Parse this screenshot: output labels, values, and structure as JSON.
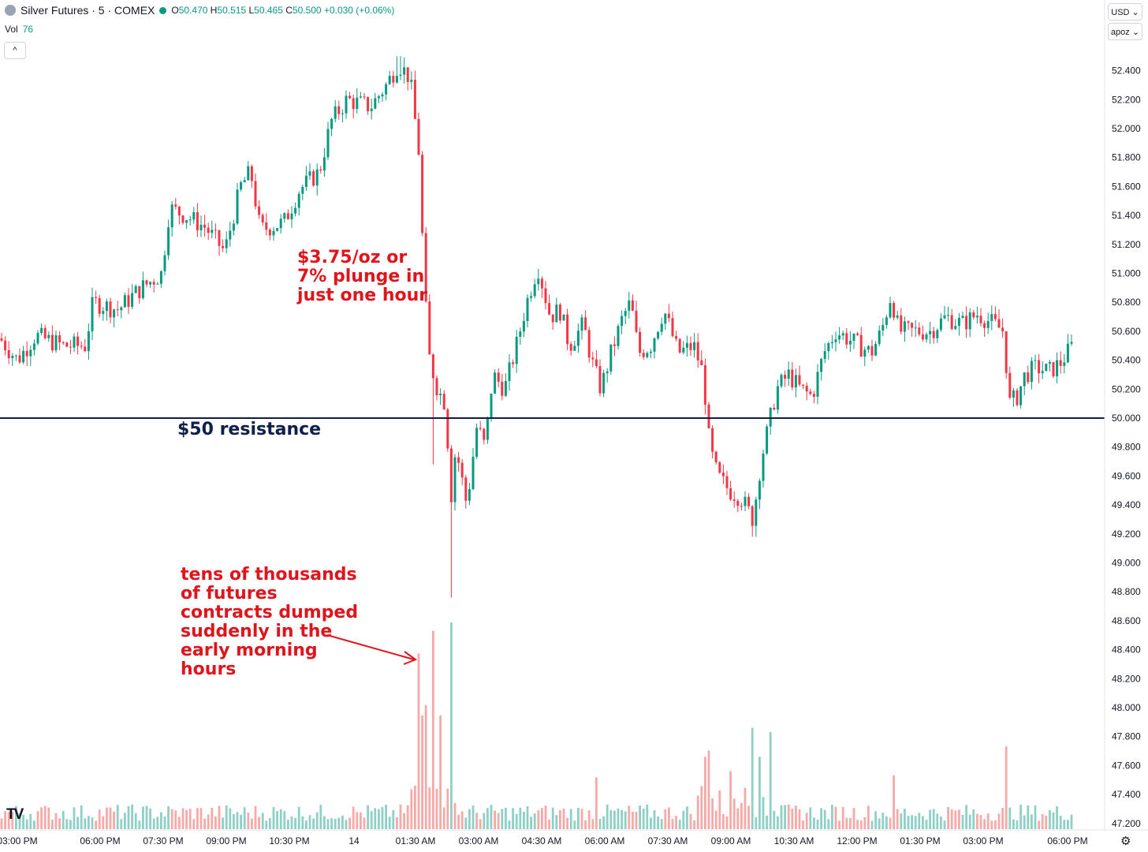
{
  "header": {
    "symbol": "Silver Futures · 5 · COMEX",
    "open_label": "O",
    "open": "50.470",
    "high_label": "H",
    "high": "50.515",
    "low_label": "L",
    "low": "50.465",
    "close_label": "C",
    "close": "50.500",
    "change": "+0.030 (+0.06%)"
  },
  "volume_legend": {
    "label": "Vol",
    "value": "76"
  },
  "controls": {
    "collapse": "^",
    "currency": "USD ⌄",
    "scale": "apoz ⌄"
  },
  "logo_text": "TV",
  "colors": {
    "up": "#089981",
    "down": "#f23645",
    "up_vol": "#8ecfc6",
    "down_vol": "#f7a9a7",
    "resistance": "#0d1f4a",
    "annotation": "#e0151c"
  },
  "annotations": {
    "plunge": [
      "$3.75/oz or",
      "7% plunge in",
      "just one hour"
    ],
    "contracts": [
      "tens of thousands",
      "of futures",
      "contracts dumped",
      "suddenly in the",
      "early morning",
      "hours"
    ],
    "resistance": "$50 resistance"
  },
  "chart_data": {
    "type": "candlestick",
    "title": "Silver Futures · 5 · COMEX",
    "y_ticks": [
      "52.400",
      "52.200",
      "52.000",
      "51.800",
      "51.600",
      "51.400",
      "51.200",
      "51.000",
      "50.800",
      "50.600",
      "50.400",
      "50.200",
      "50.000",
      "49.800",
      "49.600",
      "49.400",
      "49.200",
      "49.000",
      "48.800",
      "48.600",
      "48.400",
      "48.200",
      "48.000",
      "47.800",
      "47.600",
      "47.400",
      "47.200"
    ],
    "ylim": [
      47.1,
      52.6
    ],
    "x_ticks": [
      "03:00 PM",
      "06:00 PM",
      "07:30 PM",
      "09:00 PM",
      "10:30 PM",
      "14",
      "01:30 AM",
      "03:00 AM",
      "04:30 AM",
      "06:00 AM",
      "07:30 AM",
      "09:00 AM",
      "10:30 AM",
      "12:00 PM",
      "01:30 PM",
      "03:00 PM",
      "06:00 PM"
    ],
    "resistance_level": 50.0,
    "price_path": [
      [
        0,
        50.55
      ],
      [
        22,
        50.4
      ],
      [
        45,
        50.57
      ],
      [
        80,
        50.5
      ],
      [
        108,
        50.5
      ],
      [
        118,
        50.8
      ],
      [
        150,
        50.75
      ],
      [
        175,
        50.88
      ],
      [
        205,
        51.0
      ],
      [
        215,
        51.45
      ],
      [
        235,
        51.4
      ],
      [
        260,
        51.32
      ],
      [
        285,
        51.15
      ],
      [
        305,
        51.6
      ],
      [
        318,
        51.7
      ],
      [
        330,
        51.3
      ],
      [
        360,
        51.35
      ],
      [
        380,
        51.58
      ],
      [
        405,
        51.7
      ],
      [
        420,
        52.05
      ],
      [
        440,
        52.2
      ],
      [
        470,
        52.15
      ],
      [
        490,
        52.3
      ],
      [
        505,
        52.45
      ],
      [
        520,
        52.35
      ],
      [
        532,
        51.8
      ],
      [
        538,
        50.9
      ],
      [
        545,
        50.4
      ],
      [
        555,
        50.2
      ],
      [
        565,
        50.1
      ],
      [
        572,
        49.45
      ],
      [
        578,
        49.8
      ],
      [
        592,
        49.4
      ],
      [
        605,
        49.95
      ],
      [
        615,
        49.8
      ],
      [
        625,
        50.3
      ],
      [
        640,
        50.2
      ],
      [
        655,
        50.5
      ],
      [
        668,
        50.8
      ],
      [
        682,
        51.05
      ],
      [
        698,
        50.7
      ],
      [
        710,
        50.75
      ],
      [
        722,
        50.5
      ],
      [
        740,
        50.65
      ],
      [
        750,
        50.4
      ],
      [
        762,
        50.2
      ],
      [
        775,
        50.45
      ],
      [
        790,
        50.7
      ],
      [
        800,
        50.8
      ],
      [
        810,
        50.45
      ],
      [
        825,
        50.5
      ],
      [
        842,
        50.75
      ],
      [
        860,
        50.45
      ],
      [
        880,
        50.5
      ],
      [
        892,
        50.3
      ],
      [
        900,
        49.8
      ],
      [
        910,
        49.6
      ],
      [
        925,
        49.5
      ],
      [
        940,
        49.45
      ],
      [
        955,
        49.3
      ],
      [
        965,
        49.7
      ],
      [
        975,
        49.95
      ],
      [
        985,
        50.2
      ],
      [
        1000,
        50.3
      ],
      [
        1015,
        50.2
      ],
      [
        1030,
        50.15
      ],
      [
        1045,
        50.45
      ],
      [
        1060,
        50.6
      ],
      [
        1075,
        50.55
      ],
      [
        1090,
        50.5
      ],
      [
        1105,
        50.45
      ],
      [
        1118,
        50.6
      ],
      [
        1130,
        50.85
      ],
      [
        1140,
        50.6
      ],
      [
        1160,
        50.6
      ],
      [
        1180,
        50.6
      ],
      [
        1200,
        50.7
      ],
      [
        1220,
        50.65
      ],
      [
        1240,
        50.72
      ],
      [
        1260,
        50.65
      ],
      [
        1273,
        50.6
      ],
      [
        1280,
        50.1
      ],
      [
        1290,
        50.15
      ],
      [
        1300,
        50.3
      ],
      [
        1315,
        50.35
      ],
      [
        1330,
        50.32
      ],
      [
        1345,
        50.38
      ],
      [
        1360,
        50.5
      ]
    ],
    "volume_spikes": [
      [
        530,
        0.85
      ],
      [
        536,
        0.55
      ],
      [
        542,
        0.6
      ],
      [
        548,
        0.96
      ],
      [
        560,
        0.55
      ],
      [
        572,
        1.0
      ],
      [
        757,
        0.25
      ],
      [
        893,
        0.35
      ],
      [
        900,
        0.38
      ],
      [
        925,
        0.28
      ],
      [
        955,
        0.49
      ],
      [
        962,
        0.35
      ],
      [
        979,
        0.47
      ],
      [
        1132,
        0.26
      ],
      [
        1278,
        0.4
      ]
    ]
  }
}
